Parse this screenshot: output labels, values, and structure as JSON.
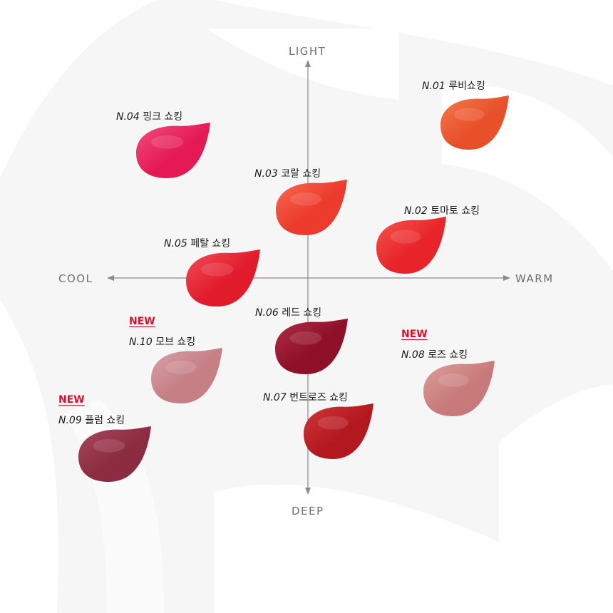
{
  "axes": {
    "top": "LIGHT",
    "bottom": "DEEP",
    "left": "COOL",
    "right": "WARM"
  },
  "badge": "NEW",
  "swatches": [
    {
      "id": "n01",
      "code": "N.01",
      "name": "루비쇼킹",
      "color": "#e8502a",
      "light": "#f47a4e",
      "is_new": false
    },
    {
      "id": "n02",
      "code": "N.02",
      "name": "토마토 쇼킹",
      "color": "#e8232a",
      "light": "#f5584e",
      "is_new": false
    },
    {
      "id": "n03",
      "code": "N.03",
      "name": "코랄 쇼킹",
      "color": "#ec3a2c",
      "light": "#f76b52",
      "is_new": false
    },
    {
      "id": "n04",
      "code": "N.04",
      "name": "핑크 쇼킹",
      "color": "#e51a55",
      "light": "#f0507c",
      "is_new": false
    },
    {
      "id": "n05",
      "code": "N.05",
      "name": "페탈 쇼킹",
      "color": "#e21b2b",
      "light": "#f0505a",
      "is_new": false
    },
    {
      "id": "n06",
      "code": "N.06",
      "name": "레드 쇼킹",
      "color": "#8e0f28",
      "light": "#b03048",
      "is_new": false
    },
    {
      "id": "n07",
      "code": "N.07",
      "name": "번트로즈 쇼킹",
      "color": "#b3181f",
      "light": "#cf3a3a",
      "is_new": false
    },
    {
      "id": "n08",
      "code": "N.08",
      "name": "로즈 쇼킹",
      "color": "#c87a7a",
      "light": "#dda09c",
      "is_new": true
    },
    {
      "id": "n09",
      "code": "N.09",
      "name": "플럼 쇼킹",
      "color": "#8c2c40",
      "light": "#a9485c",
      "is_new": true
    },
    {
      "id": "n10",
      "code": "N.10",
      "name": "모브 쇼킹",
      "color": "#c57f85",
      "light": "#d9a1a5",
      "is_new": true
    }
  ]
}
